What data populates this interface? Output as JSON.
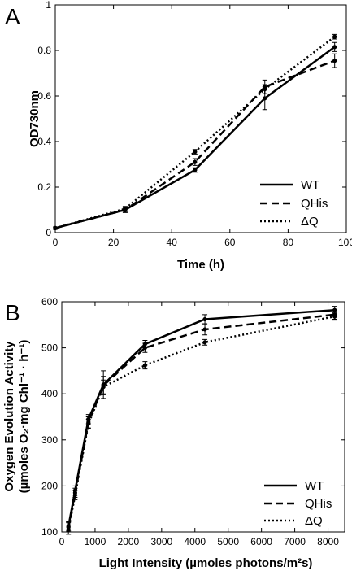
{
  "chart_data": [
    {
      "type": "line",
      "panel_label": "A",
      "xlabel": "Time (h)",
      "ylabel": "OD730nm",
      "xlim": [
        0,
        100
      ],
      "ylim": [
        0,
        1
      ],
      "x_ticks": [
        0,
        20,
        40,
        60,
        80,
        100
      ],
      "x_tick_labels": [
        "0",
        "20",
        "40",
        "60",
        "80",
        "100"
      ],
      "y_ticks": [
        0,
        0.2,
        0.4,
        0.6,
        0.8,
        1
      ],
      "y_tick_labels": [
        "0",
        "0.2",
        "0.4",
        "0.6",
        "0.8",
        "1"
      ],
      "legend_position": "bottom-right",
      "grid": false,
      "series": [
        {
          "name": "WT",
          "style": "solid",
          "x": [
            0,
            24,
            48,
            72,
            96
          ],
          "y": [
            0.02,
            0.1,
            0.275,
            0.59,
            0.815
          ],
          "err": [
            0.005,
            0.012,
            0.01,
            0.05,
            0.02
          ]
        },
        {
          "name": "QHis",
          "style": "dashed",
          "x": [
            0,
            24,
            48,
            72,
            96
          ],
          "y": [
            0.02,
            0.1,
            0.31,
            0.64,
            0.755
          ],
          "err": [
            0.005,
            0.01,
            0.015,
            0.03,
            0.03
          ]
        },
        {
          "name": "ΔQ",
          "style": "dotted",
          "x": [
            0,
            24,
            48,
            72,
            96
          ],
          "y": [
            0.02,
            0.105,
            0.355,
            0.63,
            0.86
          ],
          "err": [
            0.005,
            0.01,
            0.01,
            0.02,
            0.01
          ]
        }
      ]
    },
    {
      "type": "line",
      "panel_label": "B",
      "xlabel": "Light Intensity (µmoles photons/m²s)",
      "ylabel_line1": "Oxygen Evolution Activity",
      "ylabel_line2": "(µmoles O₂·mg Chl⁻¹ · h⁻¹)",
      "xlim": [
        0,
        8500
      ],
      "ylim": [
        100,
        600
      ],
      "x_ticks": [
        0,
        1000,
        2000,
        3000,
        4000,
        5000,
        6000,
        7000,
        8000
      ],
      "x_tick_labels": [
        "0",
        "1000",
        "2000",
        "3000",
        "4000",
        "5000",
        "6000",
        "7000",
        "8000"
      ],
      "y_ticks": [
        100,
        200,
        300,
        400,
        500,
        600
      ],
      "y_tick_labels": [
        "100",
        "200",
        "300",
        "400",
        "500",
        "600"
      ],
      "legend_position": "bottom-right",
      "grid": false,
      "series": [
        {
          "name": "WT",
          "style": "solid",
          "x": [
            200,
            400,
            800,
            1250,
            2500,
            4300,
            8200
          ],
          "y": [
            112,
            190,
            345,
            420,
            508,
            562,
            582
          ],
          "err": [
            10,
            10,
            10,
            30,
            8,
            10,
            8
          ]
        },
        {
          "name": "QHis",
          "style": "dashed",
          "x": [
            200,
            400,
            800,
            1250,
            2500,
            4300,
            8200
          ],
          "y": [
            110,
            185,
            338,
            418,
            500,
            540,
            572
          ],
          "err": [
            10,
            10,
            12,
            20,
            10,
            12,
            10
          ]
        },
        {
          "name": "ΔQ",
          "style": "dotted",
          "x": [
            200,
            400,
            800,
            1250,
            2500,
            4300,
            8200
          ],
          "y": [
            105,
            180,
            335,
            415,
            462,
            512,
            568
          ],
          "err": [
            10,
            10,
            10,
            15,
            8,
            6,
            8
          ]
        }
      ]
    }
  ]
}
